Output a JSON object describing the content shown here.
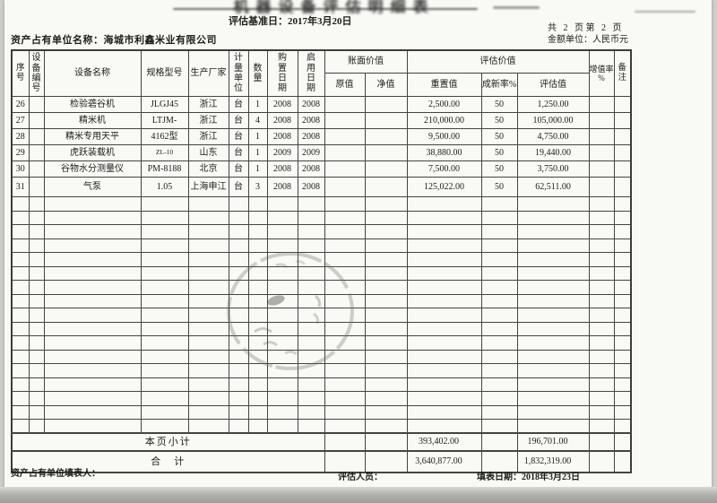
{
  "document": {
    "title_smudged": "机器设备评估明细表",
    "base_date": "评估基准日：2017年3月20日",
    "page_count": "共 2 页第 2 页",
    "currency_unit": "金额单位：人民币元",
    "owner": "资产占有单位名称：海城市利鑫米业有限公司"
  },
  "table": {
    "header": {
      "seq": "序号",
      "equip_no": "设备编号",
      "name": "设备名称",
      "model": "规格型号",
      "maker": "生产厂家",
      "unit": "计量单位",
      "qty": "数量",
      "buy_date": "购置日期",
      "use_date": "启用日期",
      "book_value_group": "账面价值",
      "orig_value": "原值",
      "net_value": "净值",
      "eval_value_group": "评估价值",
      "replace_value": "重置值",
      "new_rate": "成新率%",
      "eval_value": "评估值",
      "incr_rate": "增值率\n%",
      "note": "备注"
    },
    "rows": [
      {
        "no": "26",
        "name": "检验砻谷机",
        "model": "JLGJ45",
        "maker": "浙江",
        "unit": "台",
        "qty": "1",
        "buy": "2008",
        "use": "2008",
        "replace": "2,500.00",
        "rate": "50",
        "value": "1,250.00"
      },
      {
        "no": "27",
        "name": "精米机",
        "model": "LTJM-",
        "maker": "浙江",
        "unit": "台",
        "qty": "4",
        "buy": "2008",
        "use": "2008",
        "replace": "210,000.00",
        "rate": "50",
        "value": "105,000.00"
      },
      {
        "no": "28",
        "name": "精米专用天平",
        "model": "4162型",
        "maker": "浙江",
        "unit": "台",
        "qty": "1",
        "buy": "2008",
        "use": "2008",
        "replace": "9,500.00",
        "rate": "50",
        "value": "4,750.00"
      },
      {
        "no": "29",
        "name": "虎跃装载机",
        "model": "ZL-10",
        "maker": "山东",
        "unit": "台",
        "qty": "1",
        "buy": "2009",
        "use": "2009",
        "replace": "38,880.00",
        "rate": "50",
        "value": "19,440.00"
      },
      {
        "no": "30",
        "name": "谷物水分测量仪",
        "model": "PM-8188",
        "maker": "北京",
        "unit": "台",
        "qty": "1",
        "buy": "2008",
        "use": "2008",
        "replace": "7,500.00",
        "rate": "50",
        "value": "3,750.00"
      },
      {
        "no": "31",
        "name": "气泵",
        "model": "1.05",
        "maker": "上海申江",
        "unit": "台",
        "qty": "3",
        "buy": "2008",
        "use": "2008",
        "replace": "125,022.00",
        "rate": "50",
        "value": "62,511.00"
      }
    ],
    "empty_row_count": 17,
    "subtotal": {
      "label": "本页小计",
      "replace": "393,402.00",
      "value": "196,701.00"
    },
    "total": {
      "label": "合　计",
      "replace": "3,640,877.00",
      "value": "1,832,319.00"
    }
  },
  "footer": {
    "filler_label": "资产占有单位填表人：",
    "appraiser_label": "评估人员：",
    "fill_date": "填表日期：2018年3月23日"
  },
  "stamp": {
    "shape": "circular-seal",
    "color": "#6f6d66"
  }
}
